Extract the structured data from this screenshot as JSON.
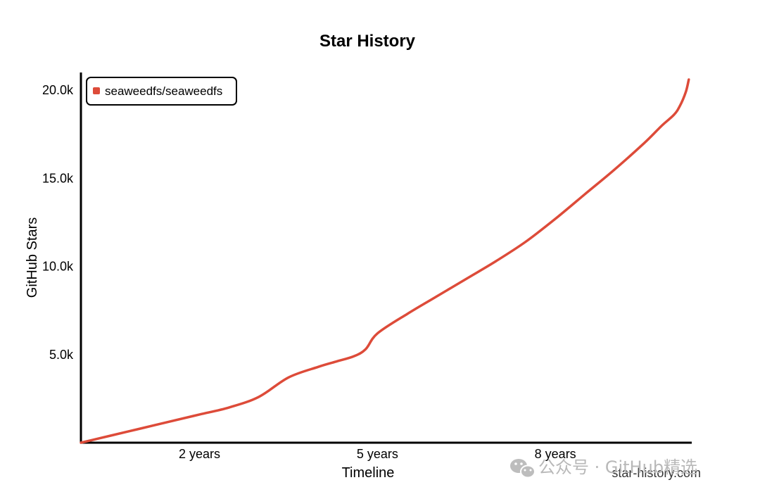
{
  "chart_data": {
    "type": "line",
    "title": "Star History",
    "xlabel": "Timeline",
    "ylabel": "GitHub Stars",
    "x_unit": "years",
    "xlim": [
      0,
      10.3
    ],
    "ylim": [
      0,
      21000
    ],
    "x_ticks": [
      {
        "value": 2,
        "label": "2 years"
      },
      {
        "value": 5,
        "label": "5 years"
      },
      {
        "value": 8,
        "label": "8 years"
      }
    ],
    "y_ticks": [
      {
        "value": 5000,
        "label": "5.0k"
      },
      {
        "value": 10000,
        "label": "10.0k"
      },
      {
        "value": 15000,
        "label": "15.0k"
      },
      {
        "value": 20000,
        "label": "20.0k"
      }
    ],
    "grid": false,
    "legend_position": "top-left",
    "series": [
      {
        "name": "seaweedfs/seaweedfs",
        "color": "#dd4b39",
        "x": [
          0,
          0.5,
          1.0,
          1.5,
          2.0,
          2.5,
          3.0,
          3.5,
          4.0,
          4.3,
          4.6,
          4.8,
          5.0,
          5.5,
          6.0,
          6.5,
          7.0,
          7.5,
          8.0,
          8.5,
          9.0,
          9.5,
          9.8,
          10.0,
          10.1,
          10.2,
          10.25
        ],
        "values": [
          0,
          400,
          800,
          1200,
          1600,
          2000,
          2600,
          3700,
          4300,
          4600,
          4900,
          5300,
          6200,
          7300,
          8300,
          9300,
          10300,
          11400,
          12700,
          14100,
          15500,
          17000,
          18000,
          18600,
          19100,
          19900,
          20600
        ]
      }
    ]
  },
  "credit": "star-history.com",
  "watermark": "公众号 · GitHub精选"
}
